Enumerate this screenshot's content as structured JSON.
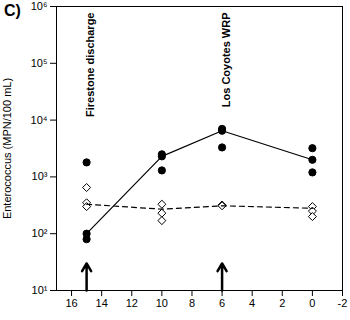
{
  "chart_data": {
    "type": "scatter",
    "title": "C)",
    "y_label": "Enterococcus (MPN/100 mL)",
    "log": "y",
    "xlim": [
      17,
      -2
    ],
    "xticks": [
      16,
      14,
      12,
      10,
      8,
      6,
      4,
      2,
      0,
      -2
    ],
    "ylim": [
      10,
      1000000
    ],
    "yticks": [
      {
        "value": 10,
        "label": "10¹"
      },
      {
        "value": 100,
        "label": "10²"
      },
      {
        "value": 1000,
        "label": "10³"
      },
      {
        "value": 10000,
        "label": "10⁴"
      },
      {
        "value": 100000,
        "label": "10⁵"
      },
      {
        "value": 1000000,
        "label": "10⁶"
      }
    ],
    "annotations": [
      {
        "text": "Firestone discharge",
        "x": 15
      },
      {
        "text": "Los Coyotes WRP",
        "x": 6
      }
    ],
    "series": [
      {
        "type": "scatter",
        "marker": "filled_circle",
        "color": "#000000",
        "x": [
          15,
          15,
          15,
          10,
          10,
          10,
          6,
          6,
          6,
          0,
          0,
          0
        ],
        "values": [
          1800,
          100,
          80,
          2500,
          2300,
          1300,
          7000,
          6500,
          3300,
          3200,
          2000,
          1200
        ]
      },
      {
        "type": "line",
        "line_style": "solid",
        "color": "#000000",
        "x": [
          15,
          10,
          6,
          0
        ],
        "values": [
          100,
          2300,
          6500,
          2000
        ]
      },
      {
        "type": "scatter",
        "marker": "open_diamond",
        "color": "#000000",
        "x": [
          15,
          15,
          15,
          10,
          10,
          10,
          6,
          6,
          0,
          0,
          0
        ],
        "values": [
          650,
          350,
          300,
          330,
          230,
          170,
          320,
          310,
          300,
          250,
          200
        ]
      },
      {
        "type": "line",
        "line_style": "dashed",
        "color": "#000000",
        "x": [
          15,
          10,
          6,
          0
        ],
        "values": [
          330,
          270,
          310,
          280
        ]
      }
    ]
  }
}
